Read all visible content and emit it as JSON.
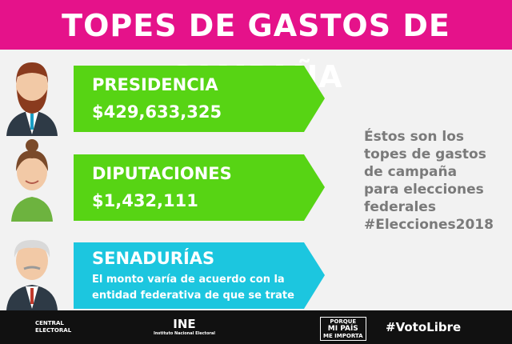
{
  "header": {
    "title": "TOPES DE GASTOS DE CAMPAÑA"
  },
  "items": [
    {
      "label": "PRESIDENCIA",
      "amount": "$429,633,325"
    },
    {
      "label": "DIPUTACIONES",
      "amount": "$1,432,111"
    },
    {
      "label": "SENADURÍAS",
      "note": "El monto varía de acuerdo con la entidad federativa de que se trate"
    }
  ],
  "side_text": [
    "Éstos son los",
    "topes de gastos",
    "de campaña",
    "para elecciones",
    "federales",
    "#Elecciones2018"
  ],
  "footer": {
    "central": [
      "CENTRAL",
      "ELECTORAL"
    ],
    "ine": {
      "name": "INE",
      "subtitle": "Instituto Nacional Electoral"
    },
    "porque": [
      "PORQUE",
      "MI PAÍS",
      "ME IMPORTA"
    ],
    "hashtag": "#VotoLibre"
  }
}
